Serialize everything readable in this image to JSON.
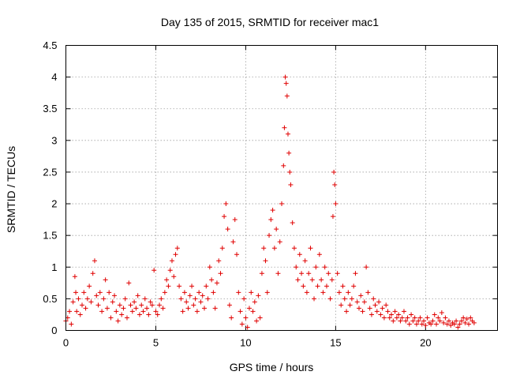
{
  "chart_data": {
    "type": "scatter",
    "title": "Day 135 of 2015, SRMTID for receiver mac1",
    "xlabel": "GPS time / hours",
    "ylabel": "SRMTID / TECUs",
    "xlim": [
      0,
      24
    ],
    "ylim": [
      0,
      4.5
    ],
    "x_ticks": [
      0,
      5,
      10,
      15,
      20
    ],
    "x_tick_labels": [
      "0",
      "5",
      "10",
      "15",
      "20"
    ],
    "y_ticks": [
      0,
      0.5,
      1,
      1.5,
      2,
      2.5,
      3,
      3.5,
      4,
      4.5
    ],
    "y_tick_labels": [
      "0",
      "0.5",
      "1",
      "1.5",
      "2",
      "2.5",
      "3",
      "3.5",
      "4",
      "4.5"
    ],
    "grid": true,
    "marker": "+",
    "color": "#e00000",
    "series": [
      {
        "name": "SRMTID",
        "points": [
          [
            0.0,
            0.15
          ],
          [
            0.1,
            0.2
          ],
          [
            0.2,
            0.3
          ],
          [
            0.3,
            0.1
          ],
          [
            0.4,
            0.45
          ],
          [
            0.5,
            0.85
          ],
          [
            0.55,
            0.6
          ],
          [
            0.6,
            0.3
          ],
          [
            0.7,
            0.5
          ],
          [
            0.8,
            0.25
          ],
          [
            0.9,
            0.4
          ],
          [
            1.0,
            0.6
          ],
          [
            1.1,
            0.35
          ],
          [
            1.2,
            0.5
          ],
          [
            1.3,
            0.7
          ],
          [
            1.4,
            0.45
          ],
          [
            1.5,
            0.9
          ],
          [
            1.6,
            1.1
          ],
          [
            1.7,
            0.55
          ],
          [
            1.8,
            0.4
          ],
          [
            1.9,
            0.6
          ],
          [
            2.0,
            0.3
          ],
          [
            2.1,
            0.5
          ],
          [
            2.2,
            0.8
          ],
          [
            2.3,
            0.35
          ],
          [
            2.4,
            0.6
          ],
          [
            2.5,
            0.2
          ],
          [
            2.6,
            0.45
          ],
          [
            2.7,
            0.55
          ],
          [
            2.8,
            0.3
          ],
          [
            2.9,
            0.15
          ],
          [
            3.0,
            0.4
          ],
          [
            3.1,
            0.25
          ],
          [
            3.2,
            0.35
          ],
          [
            3.3,
            0.5
          ],
          [
            3.4,
            0.2
          ],
          [
            3.5,
            0.75
          ],
          [
            3.6,
            0.4
          ],
          [
            3.7,
            0.3
          ],
          [
            3.8,
            0.45
          ],
          [
            3.9,
            0.35
          ],
          [
            4.0,
            0.55
          ],
          [
            4.1,
            0.25
          ],
          [
            4.2,
            0.4
          ],
          [
            4.3,
            0.3
          ],
          [
            4.4,
            0.5
          ],
          [
            4.5,
            0.35
          ],
          [
            4.6,
            0.25
          ],
          [
            4.7,
            0.45
          ],
          [
            4.8,
            0.4
          ],
          [
            4.9,
            0.95
          ],
          [
            5.0,
            0.3
          ],
          [
            5.1,
            0.25
          ],
          [
            5.2,
            0.4
          ],
          [
            5.3,
            0.5
          ],
          [
            5.4,
            0.35
          ],
          [
            5.5,
            0.6
          ],
          [
            5.6,
            0.8
          ],
          [
            5.7,
            0.7
          ],
          [
            5.8,
            0.95
          ],
          [
            5.9,
            1.1
          ],
          [
            6.0,
            0.85
          ],
          [
            6.1,
            1.2
          ],
          [
            6.2,
            1.3
          ],
          [
            6.3,
            0.7
          ],
          [
            6.4,
            0.5
          ],
          [
            6.5,
            0.3
          ],
          [
            6.6,
            0.6
          ],
          [
            6.7,
            0.45
          ],
          [
            6.8,
            0.35
          ],
          [
            6.9,
            0.55
          ],
          [
            7.0,
            0.7
          ],
          [
            7.1,
            0.4
          ],
          [
            7.2,
            0.5
          ],
          [
            7.3,
            0.3
          ],
          [
            7.4,
            0.6
          ],
          [
            7.5,
            0.45
          ],
          [
            7.6,
            0.55
          ],
          [
            7.7,
            0.35
          ],
          [
            7.8,
            0.7
          ],
          [
            7.9,
            0.5
          ],
          [
            8.0,
            1.0
          ],
          [
            8.1,
            0.8
          ],
          [
            8.2,
            0.6
          ],
          [
            8.3,
            0.35
          ],
          [
            8.4,
            0.75
          ],
          [
            8.5,
            1.1
          ],
          [
            8.6,
            0.9
          ],
          [
            8.7,
            1.3
          ],
          [
            8.8,
            1.8
          ],
          [
            8.9,
            2.0
          ],
          [
            9.0,
            1.6
          ],
          [
            9.1,
            0.4
          ],
          [
            9.2,
            0.2
          ],
          [
            9.3,
            1.4
          ],
          [
            9.4,
            1.75
          ],
          [
            9.5,
            1.2
          ],
          [
            9.6,
            0.6
          ],
          [
            9.7,
            0.3
          ],
          [
            9.8,
            0.1
          ],
          [
            9.9,
            0.5
          ],
          [
            10.0,
            0.2
          ],
          [
            10.1,
            0.05
          ],
          [
            10.2,
            0.35
          ],
          [
            10.3,
            0.6
          ],
          [
            10.4,
            0.3
          ],
          [
            10.5,
            0.45
          ],
          [
            10.6,
            0.15
          ],
          [
            10.7,
            0.55
          ],
          [
            10.8,
            0.2
          ],
          [
            10.9,
            0.9
          ],
          [
            11.0,
            1.3
          ],
          [
            11.1,
            1.1
          ],
          [
            11.2,
            0.6
          ],
          [
            11.3,
            1.5
          ],
          [
            11.4,
            1.75
          ],
          [
            11.5,
            1.9
          ],
          [
            11.6,
            1.3
          ],
          [
            11.7,
            1.6
          ],
          [
            11.8,
            0.9
          ],
          [
            11.9,
            1.4
          ],
          [
            12.0,
            2.0
          ],
          [
            12.1,
            2.6
          ],
          [
            12.15,
            3.2
          ],
          [
            12.2,
            4.0
          ],
          [
            12.25,
            3.9
          ],
          [
            12.3,
            3.7
          ],
          [
            12.35,
            3.1
          ],
          [
            12.4,
            2.8
          ],
          [
            12.45,
            2.5
          ],
          [
            12.5,
            2.3
          ],
          [
            12.6,
            1.7
          ],
          [
            12.7,
            1.3
          ],
          [
            12.8,
            1.0
          ],
          [
            12.9,
            0.8
          ],
          [
            13.0,
            1.2
          ],
          [
            13.1,
            0.9
          ],
          [
            13.2,
            0.7
          ],
          [
            13.3,
            1.1
          ],
          [
            13.4,
            0.6
          ],
          [
            13.5,
            0.9
          ],
          [
            13.6,
            1.3
          ],
          [
            13.7,
            0.8
          ],
          [
            13.8,
            0.5
          ],
          [
            13.9,
            1.0
          ],
          [
            14.0,
            0.7
          ],
          [
            14.1,
            1.2
          ],
          [
            14.2,
            0.8
          ],
          [
            14.3,
            0.6
          ],
          [
            14.4,
            1.0
          ],
          [
            14.5,
            0.7
          ],
          [
            14.6,
            0.9
          ],
          [
            14.7,
            0.5
          ],
          [
            14.8,
            0.8
          ],
          [
            14.85,
            1.8
          ],
          [
            14.9,
            2.5
          ],
          [
            14.95,
            2.3
          ],
          [
            15.0,
            2.0
          ],
          [
            15.1,
            0.9
          ],
          [
            15.2,
            0.6
          ],
          [
            15.3,
            0.4
          ],
          [
            15.4,
            0.7
          ],
          [
            15.5,
            0.5
          ],
          [
            15.6,
            0.3
          ],
          [
            15.7,
            0.6
          ],
          [
            15.8,
            0.4
          ],
          [
            15.9,
            0.5
          ],
          [
            16.0,
            0.7
          ],
          [
            16.1,
            0.9
          ],
          [
            16.2,
            0.45
          ],
          [
            16.3,
            0.35
          ],
          [
            16.4,
            0.55
          ],
          [
            16.5,
            0.3
          ],
          [
            16.6,
            0.45
          ],
          [
            16.7,
            1.0
          ],
          [
            16.8,
            0.6
          ],
          [
            16.9,
            0.35
          ],
          [
            17.0,
            0.25
          ],
          [
            17.1,
            0.5
          ],
          [
            17.2,
            0.4
          ],
          [
            17.3,
            0.3
          ],
          [
            17.4,
            0.45
          ],
          [
            17.5,
            0.25
          ],
          [
            17.6,
            0.35
          ],
          [
            17.7,
            0.2
          ],
          [
            17.8,
            0.4
          ],
          [
            17.9,
            0.3
          ],
          [
            18.0,
            0.2
          ],
          [
            18.1,
            0.25
          ],
          [
            18.2,
            0.15
          ],
          [
            18.3,
            0.3
          ],
          [
            18.4,
            0.2
          ],
          [
            18.5,
            0.25
          ],
          [
            18.6,
            0.15
          ],
          [
            18.7,
            0.2
          ],
          [
            18.8,
            0.3
          ],
          [
            18.9,
            0.15
          ],
          [
            19.0,
            0.2
          ],
          [
            19.1,
            0.1
          ],
          [
            19.2,
            0.25
          ],
          [
            19.3,
            0.15
          ],
          [
            19.4,
            0.2
          ],
          [
            19.5,
            0.1
          ],
          [
            19.6,
            0.15
          ],
          [
            19.7,
            0.2
          ],
          [
            19.8,
            0.1
          ],
          [
            19.9,
            0.15
          ],
          [
            20.0,
            0.08
          ],
          [
            20.1,
            0.2
          ],
          [
            20.2,
            0.12
          ],
          [
            20.3,
            0.1
          ],
          [
            20.4,
            0.15
          ],
          [
            20.5,
            0.25
          ],
          [
            20.6,
            0.1
          ],
          [
            20.7,
            0.2
          ],
          [
            20.8,
            0.15
          ],
          [
            20.9,
            0.28
          ],
          [
            21.0,
            0.12
          ],
          [
            21.1,
            0.2
          ],
          [
            21.2,
            0.1
          ],
          [
            21.3,
            0.15
          ],
          [
            21.4,
            0.08
          ],
          [
            21.5,
            0.12
          ],
          [
            21.6,
            0.1
          ],
          [
            21.7,
            0.15
          ],
          [
            21.8,
            0.05
          ],
          [
            21.9,
            0.1
          ],
          [
            22.0,
            0.15
          ],
          [
            22.1,
            0.2
          ],
          [
            22.2,
            0.12
          ],
          [
            22.3,
            0.18
          ],
          [
            22.4,
            0.1
          ],
          [
            22.5,
            0.2
          ],
          [
            22.6,
            0.15
          ],
          [
            22.7,
            0.12
          ]
        ]
      }
    ]
  }
}
